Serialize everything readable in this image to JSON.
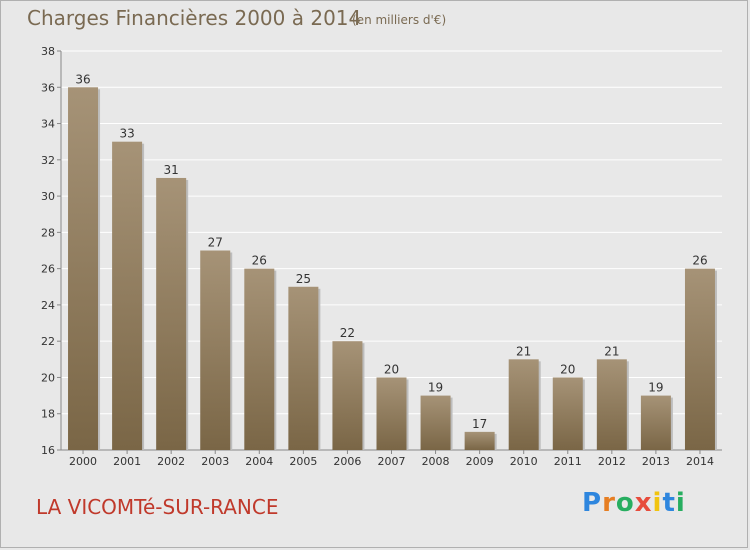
{
  "header": {
    "title": "Charges Financières 2000 à 2014",
    "subtitle": "(en milliers d'€)"
  },
  "footer": {
    "commune": "LA VICOMTé-SUR-RANCE",
    "logo_letters": [
      "P",
      "r",
      "o",
      "x",
      "i",
      "t",
      "i"
    ]
  },
  "colors": {
    "bar_top": "#a69377",
    "bar_bottom": "#7a6646",
    "text": "#333333",
    "title": "#7a6a52",
    "commune": "#c0392b",
    "grid": "#ffffff",
    "logo": [
      "#2e86de",
      "#e67e22",
      "#27ae60",
      "#e74c3c",
      "#f1c40f",
      "#2e86de",
      "#27ae60"
    ]
  },
  "chart_data": {
    "type": "bar",
    "title": "Charges Financières 2000 à 2014",
    "subtitle": "(en milliers d'€)",
    "categories": [
      "2000",
      "2001",
      "2002",
      "2003",
      "2004",
      "2005",
      "2006",
      "2007",
      "2008",
      "2009",
      "2010",
      "2011",
      "2012",
      "2013",
      "2014"
    ],
    "values": [
      36,
      33,
      31,
      27,
      26,
      25,
      22,
      20,
      19,
      17,
      21,
      20,
      21,
      19,
      26
    ],
    "ylim": [
      16,
      38
    ],
    "yticks": [
      16,
      18,
      20,
      22,
      24,
      26,
      28,
      30,
      32,
      34,
      36,
      38
    ],
    "grid": true,
    "legend": "none"
  }
}
